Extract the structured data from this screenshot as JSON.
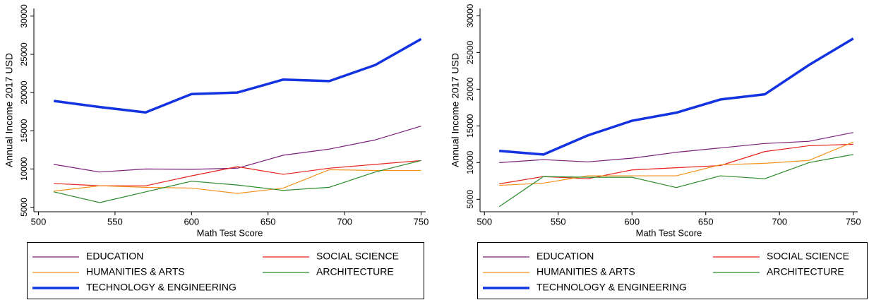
{
  "chart_data": [
    {
      "type": "line",
      "x_label": "Math Test Score",
      "y_label": "Annual Income 2017 USD",
      "x": [
        510,
        540,
        570,
        600,
        630,
        660,
        690,
        720,
        750
      ],
      "xlim": [
        497,
        753
      ],
      "xticks": [
        500,
        550,
        600,
        650,
        700,
        750
      ],
      "ylim": [
        4400,
        31000
      ],
      "yticks": [
        5000,
        10000,
        15000,
        20000,
        25000,
        30000
      ],
      "grid": false,
      "legend": "bottom",
      "series": [
        {
          "name": "EDUCATION",
          "color": "#7b1f7a",
          "linewidth": 1.2,
          "values": [
            10600,
            9600,
            10000,
            9950,
            10100,
            11800,
            12600,
            13800,
            15600
          ]
        },
        {
          "name": "SOCIAL SCIENCE",
          "color": "#e8231c",
          "linewidth": 1.2,
          "values": [
            8100,
            7800,
            7800,
            9100,
            10300,
            9300,
            10100,
            10600,
            11100
          ]
        },
        {
          "name": "HUMANITIES & ARTS",
          "color": "#f5921e",
          "linewidth": 1.2,
          "values": [
            7100,
            7800,
            7600,
            7500,
            6800,
            7500,
            9900,
            9800,
            9800
          ]
        },
        {
          "name": "ARCHITECTURE",
          "color": "#2a8a2a",
          "linewidth": 1.2,
          "values": [
            7000,
            5600,
            7000,
            8400,
            7900,
            7200,
            7600,
            9600,
            11100
          ]
        },
        {
          "name": "TECHNOLOGY & ENGINEERING",
          "color": "#1433e0",
          "linewidth": 3.5,
          "values": [
            18900,
            18100,
            17400,
            19800,
            20000,
            21700,
            21500,
            23600,
            27000
          ]
        }
      ]
    },
    {
      "type": "line",
      "x_label": "Math Test Score",
      "y_label": "Annual Income 2017 USD",
      "x": [
        510,
        540,
        570,
        600,
        630,
        660,
        690,
        720,
        750
      ],
      "xlim": [
        497,
        753
      ],
      "xticks": [
        500,
        550,
        600,
        650,
        700,
        750
      ],
      "ylim": [
        3300,
        31000
      ],
      "yticks": [
        5000,
        10000,
        15000,
        20000,
        25000,
        30000
      ],
      "grid": false,
      "legend": "bottom",
      "series": [
        {
          "name": "EDUCATION",
          "color": "#7b1f7a",
          "linewidth": 1.2,
          "values": [
            10000,
            10400,
            10100,
            10600,
            11400,
            12000,
            12600,
            12900,
            14100
          ]
        },
        {
          "name": "SOCIAL SCIENCE",
          "color": "#e8231c",
          "linewidth": 1.2,
          "values": [
            7100,
            8100,
            7800,
            9000,
            9300,
            9600,
            11500,
            12300,
            12500
          ]
        },
        {
          "name": "HUMANITIES & ARTS",
          "color": "#f5921e",
          "linewidth": 1.2,
          "values": [
            6900,
            7200,
            8200,
            8200,
            8200,
            9700,
            9900,
            10300,
            12800
          ]
        },
        {
          "name": "ARCHITECTURE",
          "color": "#2a8a2a",
          "linewidth": 1.2,
          "values": [
            4000,
            8100,
            8000,
            8000,
            6600,
            8200,
            7800,
            10000,
            11100
          ]
        },
        {
          "name": "TECHNOLOGY & ENGINEERING",
          "color": "#1433e0",
          "linewidth": 3.5,
          "values": [
            11600,
            11100,
            13700,
            15700,
            16800,
            18600,
            19300,
            23300,
            26900
          ]
        }
      ]
    }
  ]
}
